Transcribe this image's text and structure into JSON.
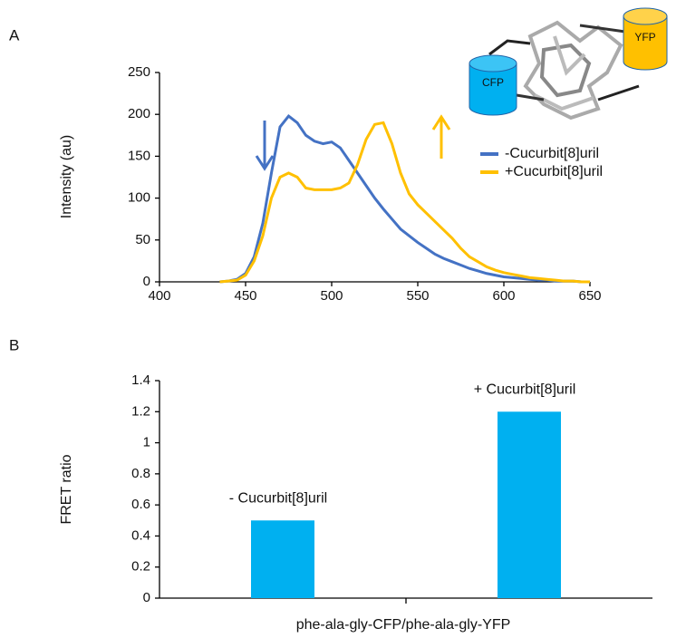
{
  "chart_data": [
    {
      "type": "line",
      "panel": "A",
      "ylabel": "Intensity (au)",
      "x": [
        435,
        440,
        445,
        450,
        455,
        460,
        465,
        470,
        475,
        480,
        485,
        490,
        495,
        500,
        505,
        510,
        515,
        520,
        525,
        530,
        535,
        540,
        545,
        550,
        555,
        560,
        565,
        570,
        575,
        580,
        585,
        590,
        595,
        600,
        605,
        610,
        615,
        620,
        625,
        630,
        635,
        640,
        645,
        650
      ],
      "series": [
        {
          "name": "-Cucurbit[8]uril",
          "color": "#4472c4",
          "values": [
            0,
            1,
            3,
            10,
            30,
            70,
            130,
            185,
            198,
            190,
            175,
            168,
            165,
            167,
            160,
            145,
            130,
            115,
            100,
            87,
            75,
            63,
            55,
            47,
            40,
            33,
            28,
            24,
            20,
            16,
            13,
            10,
            8,
            6,
            5,
            4,
            3,
            2,
            2,
            1,
            1,
            1,
            0,
            0
          ]
        },
        {
          "name": "+Cucurbit[8]uril",
          "color": "#ffc000",
          "values": [
            0,
            1,
            2,
            8,
            25,
            55,
            100,
            125,
            130,
            125,
            112,
            110,
            110,
            110,
            112,
            118,
            140,
            170,
            188,
            190,
            165,
            130,
            105,
            92,
            82,
            72,
            62,
            52,
            40,
            30,
            24,
            18,
            14,
            11,
            9,
            7,
            5,
            4,
            3,
            2,
            1,
            1,
            0,
            0
          ]
        }
      ],
      "xlim": [
        400,
        650
      ],
      "xticks": [
        400,
        450,
        500,
        550,
        600,
        650
      ],
      "ylim": [
        0,
        250
      ],
      "yticks": [
        0,
        50,
        100,
        150,
        200,
        250
      ],
      "grid": false,
      "legend": "right",
      "annotations": [
        "CFP",
        "YFP"
      ]
    },
    {
      "type": "bar",
      "panel": "B",
      "xlabel": "phe-ala-gly-CFP/phe-ala-gly-YFP",
      "ylabel": "FRET ratio",
      "categories": [
        "- Cucurbit[8]uril",
        "+ Cucurbit[8]uril"
      ],
      "values": [
        0.5,
        1.2
      ],
      "color": "#00b0f0",
      "ylim": [
        0,
        1.4
      ],
      "yticks": [
        0,
        0.2,
        0.4,
        0.6,
        0.8,
        1,
        1.2,
        1.4
      ],
      "grid": false
    }
  ]
}
